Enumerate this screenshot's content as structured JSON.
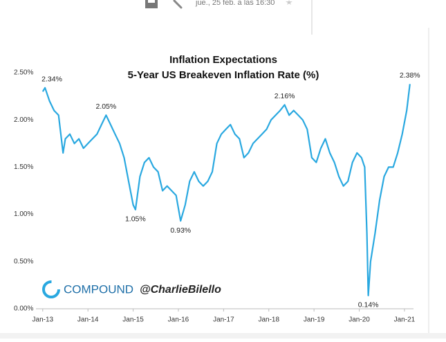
{
  "header": {
    "date": "jue., 25 feb. a las 16:30"
  },
  "watermark": {
    "brand": "COMPOUND",
    "handle": "@CharlieBilello"
  },
  "chart_data": {
    "type": "line",
    "title": "Inflation Expectations",
    "subtitle": "5-Year US Breakeven Inflation Rate (%)",
    "x": [
      2013.0,
      2013.05,
      2013.15,
      2013.25,
      2013.35,
      2013.45,
      2013.5,
      2013.6,
      2013.7,
      2013.8,
      2013.9,
      2014.0,
      2014.1,
      2014.2,
      2014.3,
      2014.4,
      2014.5,
      2014.6,
      2014.7,
      2014.8,
      2014.9,
      2015.0,
      2015.05,
      2015.15,
      2015.25,
      2015.35,
      2015.45,
      2015.55,
      2015.65,
      2015.75,
      2015.85,
      2015.95,
      2016.05,
      2016.15,
      2016.25,
      2016.35,
      2016.45,
      2016.55,
      2016.65,
      2016.75,
      2016.85,
      2016.95,
      2017.05,
      2017.15,
      2017.25,
      2017.35,
      2017.45,
      2017.55,
      2017.65,
      2017.75,
      2017.85,
      2017.95,
      2018.05,
      2018.15,
      2018.25,
      2018.35,
      2018.45,
      2018.55,
      2018.65,
      2018.75,
      2018.85,
      2018.95,
      2019.05,
      2019.15,
      2019.25,
      2019.35,
      2019.45,
      2019.55,
      2019.65,
      2019.75,
      2019.85,
      2019.95,
      2020.05,
      2020.12,
      2020.17,
      2020.2,
      2020.25,
      2020.35,
      2020.45,
      2020.55,
      2020.65,
      2020.75,
      2020.85,
      2020.95,
      2021.05,
      2021.12
    ],
    "series": [
      {
        "name": "5-Year US Breakeven Inflation Rate",
        "color": "#29a8e0",
        "values": [
          2.3,
          2.34,
          2.2,
          2.1,
          2.05,
          1.65,
          1.8,
          1.85,
          1.75,
          1.8,
          1.7,
          1.75,
          1.8,
          1.85,
          1.95,
          2.05,
          1.95,
          1.85,
          1.75,
          1.6,
          1.35,
          1.1,
          1.05,
          1.4,
          1.55,
          1.6,
          1.5,
          1.45,
          1.25,
          1.3,
          1.25,
          1.2,
          0.93,
          1.1,
          1.35,
          1.45,
          1.35,
          1.3,
          1.35,
          1.45,
          1.75,
          1.85,
          1.9,
          1.95,
          1.85,
          1.8,
          1.6,
          1.65,
          1.75,
          1.8,
          1.85,
          1.9,
          2.0,
          2.05,
          2.1,
          2.16,
          2.05,
          2.1,
          2.05,
          2.0,
          1.9,
          1.6,
          1.55,
          1.7,
          1.8,
          1.65,
          1.55,
          1.4,
          1.3,
          1.35,
          1.55,
          1.65,
          1.6,
          1.5,
          0.8,
          0.14,
          0.5,
          0.8,
          1.15,
          1.4,
          1.5,
          1.5,
          1.65,
          1.85,
          2.1,
          2.38
        ]
      }
    ],
    "annotations": [
      {
        "x": 2013.05,
        "value": 2.34,
        "label": "2.34%"
      },
      {
        "x": 2014.4,
        "value": 2.05,
        "label": "2.05%"
      },
      {
        "x": 2015.05,
        "value": 1.05,
        "label": "1.05%"
      },
      {
        "x": 2016.05,
        "value": 0.93,
        "label": "0.93%"
      },
      {
        "x": 2018.35,
        "value": 2.16,
        "label": "2.16%"
      },
      {
        "x": 2020.2,
        "value": 0.14,
        "label": "0.14%"
      },
      {
        "x": 2021.12,
        "value": 2.38,
        "label": "2.38%"
      }
    ],
    "xlim": [
      2012.85,
      2021.2
    ],
    "ylim": [
      0,
      2.5
    ],
    "xticks": [
      {
        "value": 2013,
        "label": "Jan-13"
      },
      {
        "value": 2014,
        "label": "Jan-14"
      },
      {
        "value": 2015,
        "label": "Jan-15"
      },
      {
        "value": 2016,
        "label": "Jan-16"
      },
      {
        "value": 2017,
        "label": "Jan-17"
      },
      {
        "value": 2018,
        "label": "Jan-18"
      },
      {
        "value": 2019,
        "label": "Jan-19"
      },
      {
        "value": 2020,
        "label": "Jan-20"
      },
      {
        "value": 2021,
        "label": "Jan-21"
      }
    ],
    "yticks": [
      {
        "value": 0,
        "label": "0.00%"
      },
      {
        "value": 0.5,
        "label": "0.50%"
      },
      {
        "value": 1.0,
        "label": "1.00%"
      },
      {
        "value": 1.5,
        "label": "1.50%"
      },
      {
        "value": 2.0,
        "label": "2.00%"
      },
      {
        "value": 2.5,
        "label": "2.50%"
      }
    ],
    "grid": false
  }
}
